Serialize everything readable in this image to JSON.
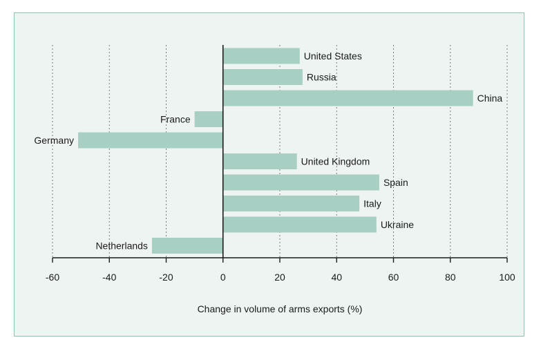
{
  "chart_data": {
    "type": "bar",
    "orientation": "horizontal",
    "categories": [
      "United States",
      "Russia",
      "China",
      "France",
      "Germany",
      "United Kingdom",
      "Spain",
      "Italy",
      "Ukraine",
      "Netherlands"
    ],
    "values": [
      27,
      28,
      88,
      -10,
      -51,
      26,
      55,
      48,
      54,
      -25
    ],
    "xlabel": "Change in volume of arms exports (%)",
    "xlim": [
      -60,
      100
    ],
    "xticks": [
      -60,
      -40,
      -20,
      0,
      20,
      40,
      60,
      80,
      100
    ],
    "grid": true,
    "colors": {
      "bar": "#a8cfc3",
      "frame_border": "#8ec3b4",
      "frame_background": "#eef4f1"
    }
  }
}
